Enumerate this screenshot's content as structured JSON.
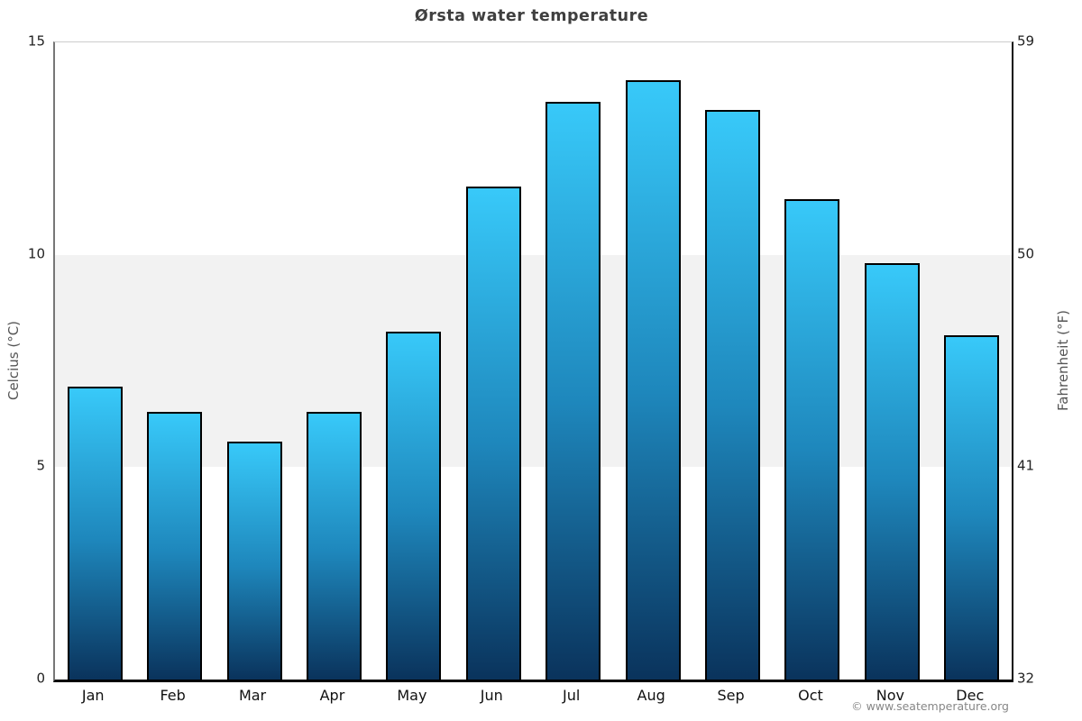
{
  "title": "Ørsta water temperature",
  "credit": "© www.seatemperature.org",
  "axes": {
    "left_title": "Celcius (°C)",
    "right_title": "Fahrenheit (°F)",
    "celsius_ticks": [
      0,
      5,
      10,
      15
    ],
    "fahrenheit_ticks": [
      32,
      41,
      50,
      59
    ]
  },
  "colors": {
    "bar_gradient_top": "#38c9f9",
    "bar_gradient_mid": "#1e87bc",
    "bar_gradient_bottom": "#0a335c",
    "bar_border": "#000000",
    "band_fill": "#f2f2f2",
    "title_text": "#3f3f3f",
    "axis_bottom_line": "#000000",
    "plot_top_line": "#cccccc"
  },
  "chart_data": {
    "type": "bar",
    "title": "Ørsta water temperature",
    "categories": [
      "Jan",
      "Feb",
      "Mar",
      "Apr",
      "May",
      "Jun",
      "Jul",
      "Aug",
      "Sep",
      "Oct",
      "Nov",
      "Dec"
    ],
    "values": [
      6.9,
      6.3,
      5.6,
      6.3,
      8.2,
      11.6,
      13.6,
      14.1,
      13.4,
      11.3,
      9.8,
      8.1
    ],
    "xlabel": "",
    "ylabel": "Celcius (°C)",
    "ylabel_secondary": "Fahrenheit (°F)",
    "ylim": [
      0,
      15
    ],
    "ylim_secondary": [
      32,
      59
    ],
    "yticks": [
      0,
      5,
      10,
      15
    ],
    "yticks_secondary": [
      32,
      41,
      50,
      59
    ],
    "shaded_band": {
      "from": 5,
      "to": 10,
      "color": "#f2f2f2"
    },
    "grid": "off",
    "legend": "none"
  }
}
